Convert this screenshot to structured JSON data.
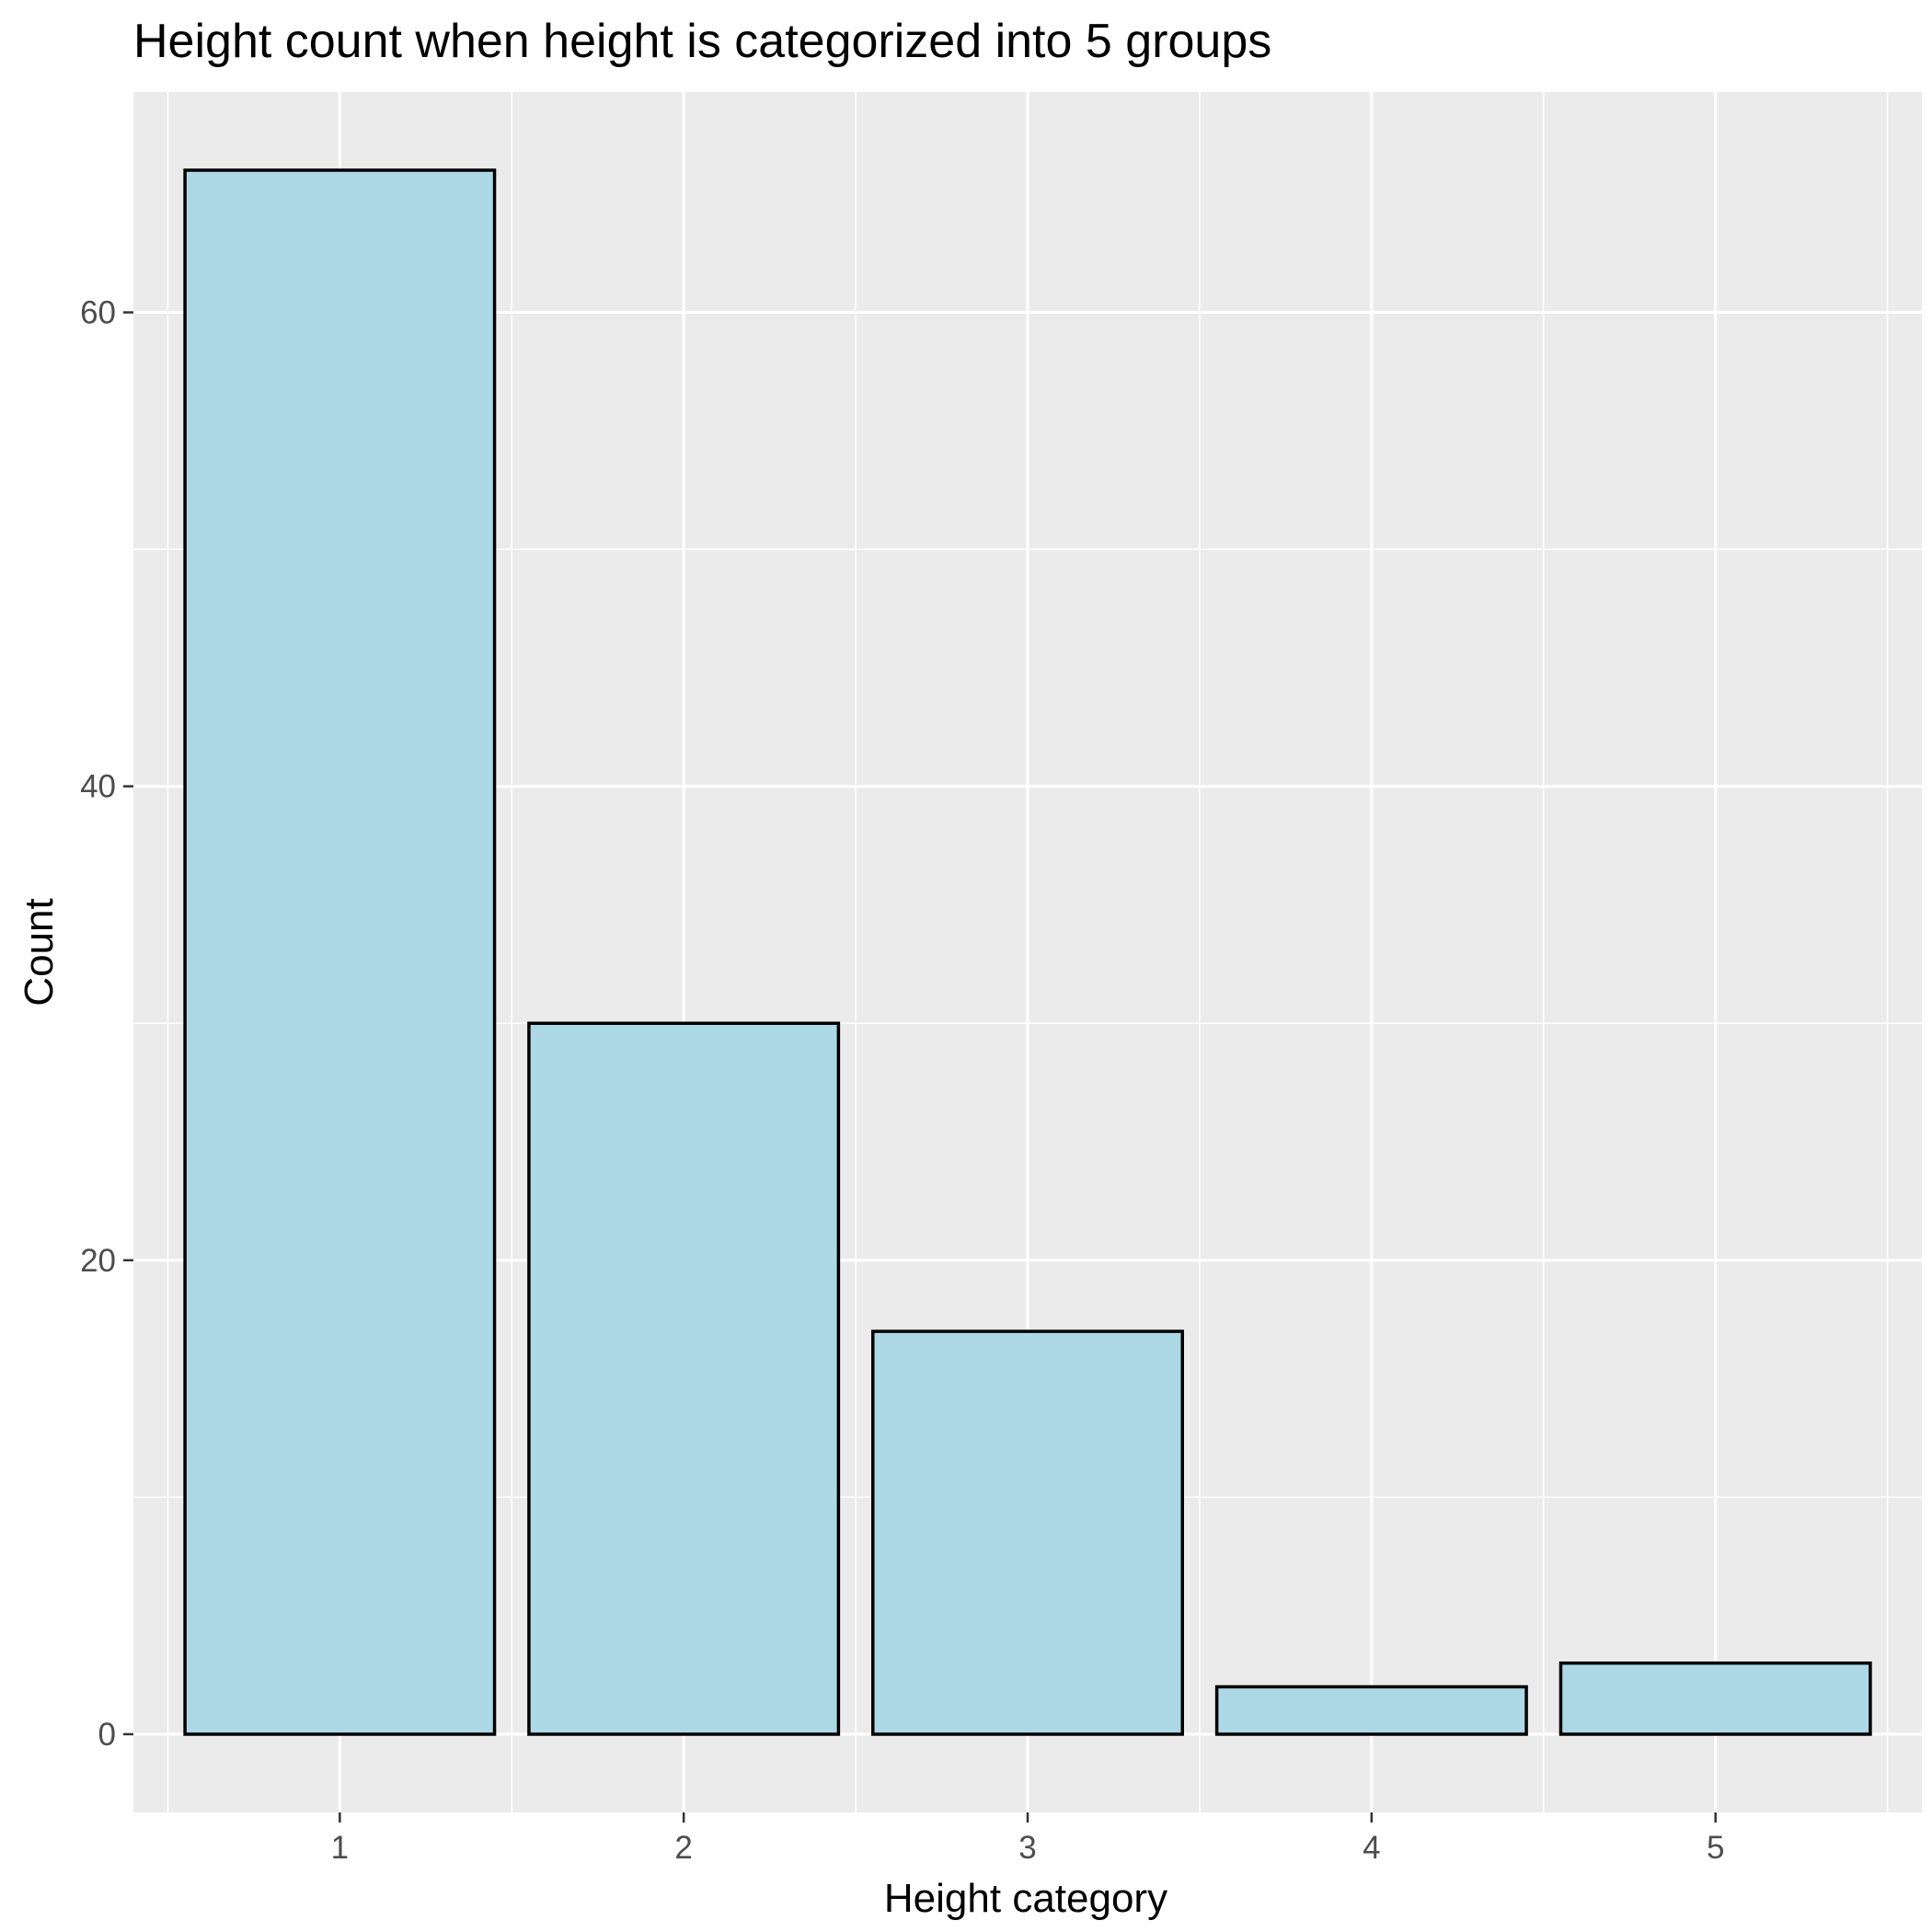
{
  "chart_data": {
    "type": "bar",
    "title": "Height count when height is categorized into 5 groups",
    "xlabel": "Height category",
    "ylabel": "Count",
    "categories": [
      "1",
      "2",
      "3",
      "4",
      "5"
    ],
    "values": [
      66,
      30,
      17,
      2,
      3
    ],
    "ylim": [
      -3.3,
      69.3
    ],
    "yticks": [
      0,
      20,
      40,
      60
    ],
    "ytick_labels": [
      "0",
      "20",
      "40",
      "60"
    ],
    "grid": true,
    "legend": "none",
    "colors": {
      "panel_background": "#ebebeb",
      "grid": "#ffffff",
      "bar_fill": "#add8e6",
      "bar_outline": "#000000",
      "tick_text": "#4d4d4d",
      "tick_mark": "#333333"
    }
  }
}
